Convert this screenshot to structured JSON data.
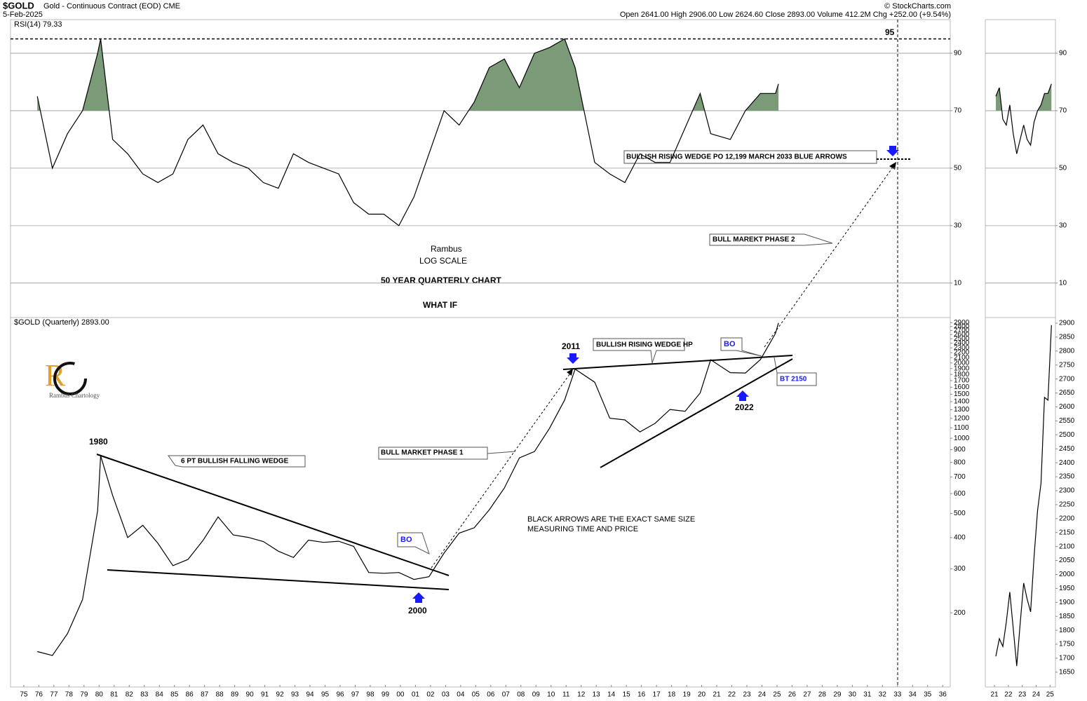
{
  "header": {
    "symbol": "$GOLD",
    "name": "Gold - Continuous Contract (EOD) CME",
    "date": "5-Feb-2025",
    "source": "© StockCharts.com",
    "quote": "Open 2641.00 High 2906.00 Low 2624.60 Close 2893.00 Volume 412.2M Chg +252.00 (+9.54%)"
  },
  "annotations": [
    "Rambus",
    "LOG SCALE",
    "50 YEAR QUARTERLY CHART",
    "WHAT IF",
    "BULLISH RISING WEDGE PO 12,199  MARCH 2033 BLUE ARROWS",
    "BULL MAREKT PHASE 2",
    "BULLISH RISING WEDGE HP",
    "2011",
    "BO",
    "BT 2150",
    "2022",
    "1980",
    "6 PT BULLISH FALLING WEDGE",
    "BULL MARKET PHASE 1",
    "BLACK ARROWS ARE THE EXACT SAME SIZE",
    "MEASURING TIME AND PRICE",
    "BO",
    "2000",
    "Rambus Chartology",
    "95"
  ],
  "chart_data": [
    {
      "type": "line",
      "title": "RSI(14) 79.33",
      "color": "#000000",
      "fill_above": 70,
      "fill_color": "#7a9a78",
      "marker_level": 95,
      "x": [
        1975.9,
        1976.9,
        1977.9,
        1978.9,
        1979.9,
        1980.1,
        1980.9,
        1981.9,
        1982.9,
        1983.9,
        1984.9,
        1985.9,
        1986.9,
        1987.9,
        1988.9,
        1989.9,
        1990.9,
        1991.9,
        1992.9,
        1993.9,
        1994.9,
        1995.9,
        1996.9,
        1997.9,
        1998.9,
        1999.9,
        2000.9,
        2001.9,
        2002.9,
        2003.9,
        2004.9,
        2005.9,
        2006.9,
        2007.9,
        2008.9,
        2009.9,
        2010.9,
        2011.6,
        2012.9,
        2013.9,
        2014.9,
        2015.9,
        2016.9,
        2017.9,
        2018.9,
        2019.9,
        2020.6,
        2021.9,
        2022.9,
        2023.9,
        2024.9,
        2025.1
      ],
      "values": [
        75,
        50,
        62,
        70,
        90,
        95,
        60,
        55,
        48,
        45,
        48,
        60,
        65,
        55,
        52,
        50,
        45,
        43,
        55,
        52,
        50,
        48,
        38,
        34,
        34,
        30,
        40,
        55,
        70,
        65,
        73,
        85,
        88,
        78,
        90,
        92,
        95,
        85,
        52,
        48,
        45,
        55,
        52,
        52,
        64,
        76,
        62,
        60,
        70,
        76,
        76,
        79.33
      ],
      "xlim": [
        1974.12,
        2036.5
      ],
      "ylim": [
        -2,
        101.7
      ],
      "yticks": [
        10,
        30,
        50,
        70,
        90
      ]
    },
    {
      "type": "line",
      "title": "$GOLD (Quarterly) 2893.00",
      "color": "#000000",
      "log_scale": true,
      "grid": false,
      "x": [
        1975.9,
        1976.9,
        1977.9,
        1978.9,
        1979.9,
        1980.1,
        1980.9,
        1981.9,
        1982.9,
        1983.9,
        1984.9,
        1985.9,
        1986.9,
        1987.9,
        1988.9,
        1989.9,
        1990.9,
        1991.9,
        1992.9,
        1993.9,
        1994.9,
        1995.9,
        1996.9,
        1997.9,
        1998.9,
        1999.9,
        2000.9,
        2001.9,
        2002.9,
        2003.9,
        2004.9,
        2005.9,
        2006.9,
        2007.9,
        2008.9,
        2009.9,
        2010.9,
        2011.6,
        2012.9,
        2013.9,
        2014.9,
        2015.9,
        2016.9,
        2017.9,
        2018.9,
        2019.9,
        2020.6,
        2021.9,
        2022.9,
        2023.9,
        2024.9,
        2025.1
      ],
      "values": [
        140,
        135,
        165,
        226,
        512,
        850,
        590,
        400,
        448,
        380,
        309,
        327,
        390,
        484,
        410,
        401,
        386,
        353,
        333,
        391,
        383,
        387,
        369,
        290,
        288,
        290,
        272,
        279,
        347,
        417,
        438,
        517,
        632,
        834,
        884,
        1096,
        1421,
        1890,
        1676,
        1202,
        1184,
        1060,
        1146,
        1303,
        1282,
        1517,
        2060,
        1829,
        1824,
        2063,
        2625,
        2893
      ],
      "xlim": [
        1974.12,
        2036.5
      ],
      "ylim": [
        101,
        3040
      ],
      "yticks": [
        200,
        300,
        400,
        500,
        600,
        700,
        800,
        900,
        1000,
        1100,
        1200,
        1300,
        1400,
        1500,
        1600,
        1700,
        1800,
        1900,
        2000,
        2100,
        2200,
        2300,
        2400,
        2500,
        2600,
        2700,
        2800,
        2900
      ],
      "xticks": [
        {
          "value": 1975,
          "label": "75"
        },
        {
          "value": 1976,
          "label": "76"
        },
        {
          "value": 1977,
          "label": "77"
        },
        {
          "value": 1978,
          "label": "78"
        },
        {
          "value": 1979,
          "label": "79"
        },
        {
          "value": 1980,
          "label": "80"
        },
        {
          "value": 1981,
          "label": "81"
        },
        {
          "value": 1982,
          "label": "82"
        },
        {
          "value": 1983,
          "label": "83"
        },
        {
          "value": 1984,
          "label": "84"
        },
        {
          "value": 1985,
          "label": "85"
        },
        {
          "value": 1986,
          "label": "86"
        },
        {
          "value": 1987,
          "label": "87"
        },
        {
          "value": 1988,
          "label": "88"
        },
        {
          "value": 1989,
          "label": "89"
        },
        {
          "value": 1990,
          "label": "90"
        },
        {
          "value": 1991,
          "label": "91"
        },
        {
          "value": 1992,
          "label": "92"
        },
        {
          "value": 1993,
          "label": "93"
        },
        {
          "value": 1994,
          "label": "94"
        },
        {
          "value": 1995,
          "label": "95"
        },
        {
          "value": 1996,
          "label": "96"
        },
        {
          "value": 1997,
          "label": "97"
        },
        {
          "value": 1998,
          "label": "98"
        },
        {
          "value": 1999,
          "label": "99"
        },
        {
          "value": 2000,
          "label": "00"
        },
        {
          "value": 2001,
          "label": "01"
        },
        {
          "value": 2002,
          "label": "02"
        },
        {
          "value": 2003,
          "label": "03"
        },
        {
          "value": 2004,
          "label": "04"
        },
        {
          "value": 2005,
          "label": "05"
        },
        {
          "value": 2006,
          "label": "06"
        },
        {
          "value": 2007,
          "label": "07"
        },
        {
          "value": 2008,
          "label": "08"
        },
        {
          "value": 2009,
          "label": "09"
        },
        {
          "value": 2010,
          "label": "10"
        },
        {
          "value": 2011,
          "label": "11"
        },
        {
          "value": 2012,
          "label": "12"
        },
        {
          "value": 2013,
          "label": "13"
        },
        {
          "value": 2014,
          "label": "14"
        },
        {
          "value": 2015,
          "label": "15"
        },
        {
          "value": 2016,
          "label": "16"
        },
        {
          "value": 2017,
          "label": "17"
        },
        {
          "value": 2018,
          "label": "18"
        },
        {
          "value": 2019,
          "label": "19"
        },
        {
          "value": 2020,
          "label": "20"
        },
        {
          "value": 2021,
          "label": "21"
        },
        {
          "value": 2022,
          "label": "22"
        },
        {
          "value": 2023,
          "label": "23"
        },
        {
          "value": 2024,
          "label": "24"
        },
        {
          "value": 2025,
          "label": "25"
        },
        {
          "value": 2026,
          "label": "26"
        },
        {
          "value": 2027,
          "label": "27"
        },
        {
          "value": 2028,
          "label": "28"
        },
        {
          "value": 2029,
          "label": "29"
        },
        {
          "value": 2030,
          "label": "30"
        },
        {
          "value": 2031,
          "label": "31"
        },
        {
          "value": 2032,
          "label": "32"
        },
        {
          "value": 2033,
          "label": "33"
        },
        {
          "value": 2034,
          "label": "34"
        },
        {
          "value": 2035,
          "label": "35"
        },
        {
          "value": 2036,
          "label": "36"
        }
      ]
    },
    {
      "type": "line",
      "color": "#000000",
      "fill_above": 70,
      "fill_color": "#7a9a78",
      "x": [
        2021.1,
        2021.35,
        2021.6,
        2021.85,
        2022.1,
        2022.35,
        2022.6,
        2022.85,
        2023.1,
        2023.35,
        2023.6,
        2023.85,
        2024.1,
        2024.35,
        2024.6,
        2024.85,
        2025.1
      ],
      "values": [
        75,
        78,
        67,
        65,
        72,
        62,
        55,
        60,
        65,
        60,
        58,
        66,
        70,
        72,
        76,
        76,
        79.33
      ],
      "xlim": [
        2020.34,
        2025.39
      ],
      "ylim": [
        -2,
        101.7
      ],
      "yticks": [
        10,
        30,
        50,
        70,
        90
      ]
    },
    {
      "type": "line",
      "color": "#000000",
      "x": [
        2021.1,
        2021.35,
        2021.6,
        2021.85,
        2022.1,
        2022.35,
        2022.6,
        2022.85,
        2023.1,
        2023.35,
        2023.6,
        2023.85,
        2024.1,
        2024.35,
        2024.6,
        2024.85,
        2025.1
      ],
      "values": [
        1707,
        1770,
        1742,
        1829,
        1937,
        1807,
        1672,
        1824,
        1969,
        1912,
        1866,
        2063,
        2229,
        2326,
        2634,
        2624,
        2893
      ],
      "xlim": [
        2020.34,
        2025.39
      ],
      "ylim": [
        1597,
        2920
      ],
      "yticks": [
        1650,
        1700,
        1750,
        1800,
        1850,
        1900,
        1950,
        2000,
        2050,
        2100,
        2150,
        2200,
        2250,
        2300,
        2350,
        2400,
        2450,
        2500,
        2550,
        2600,
        2650,
        2700,
        2750,
        2800,
        2850,
        2900
      ],
      "xticks": [
        {
          "value": 2021,
          "label": "21"
        },
        {
          "value": 2022,
          "label": "22"
        },
        {
          "value": 2023,
          "label": "23"
        },
        {
          "value": 2024,
          "label": "24"
        },
        {
          "value": 2025,
          "label": "25"
        }
      ]
    }
  ]
}
